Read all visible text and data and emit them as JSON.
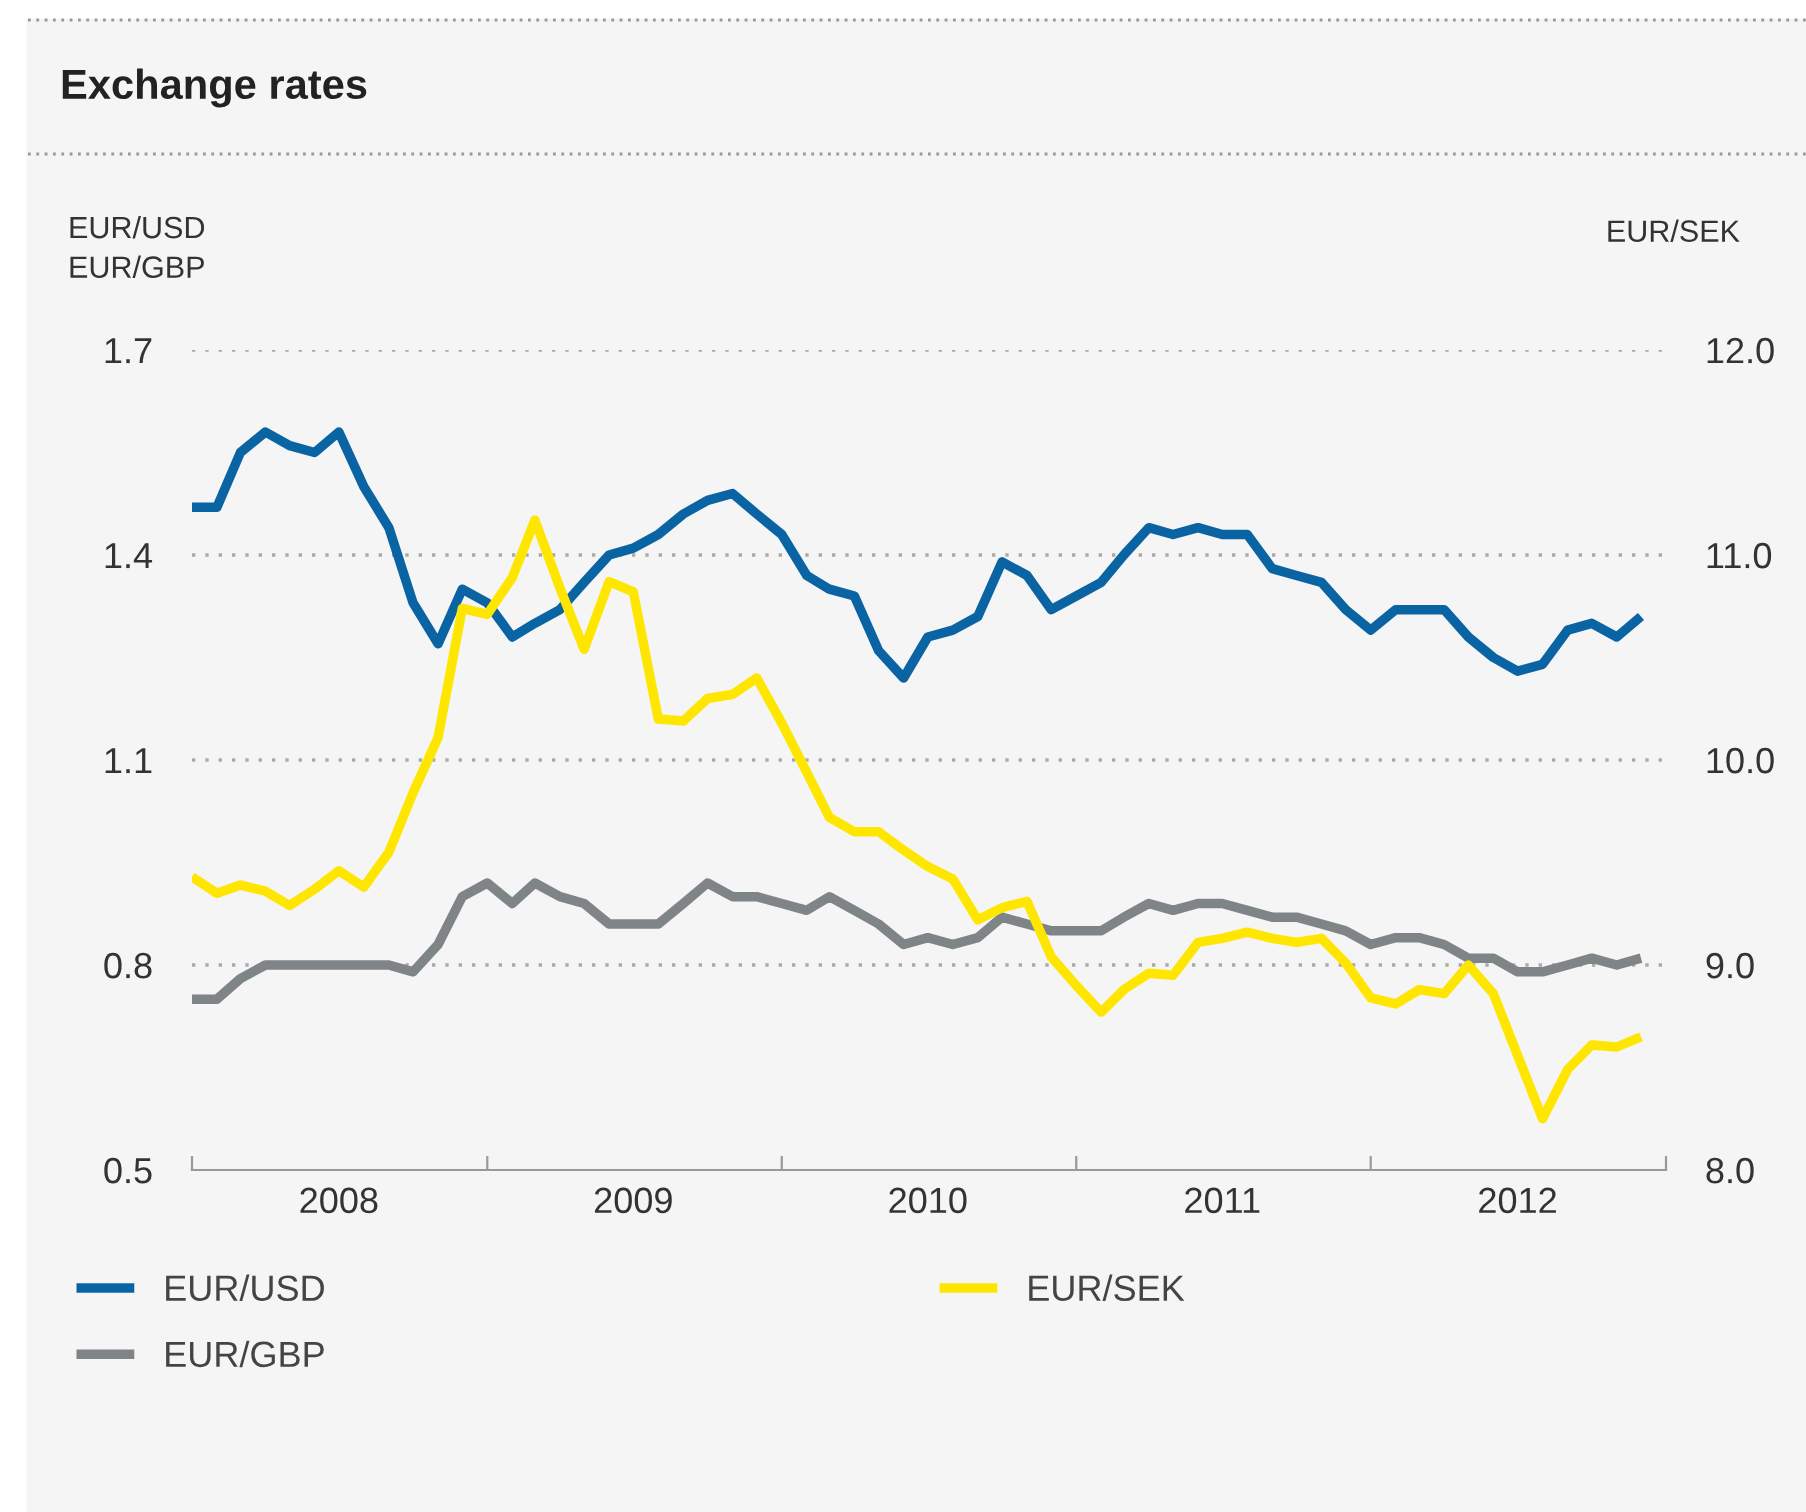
{
  "chart_data": {
    "type": "line",
    "title": "Exchange rates",
    "ylabel": "EUR/USD\nEUR/GBP",
    "y2label": "EUR/SEK",
    "x": [
      "2008-01",
      "2008-02",
      "2008-03",
      "2008-04",
      "2008-05",
      "2008-06",
      "2008-07",
      "2008-08",
      "2008-09",
      "2008-10",
      "2008-11",
      "2008-12",
      "2009-01",
      "2009-02",
      "2009-03",
      "2009-04",
      "2009-05",
      "2009-06",
      "2009-07",
      "2009-08",
      "2009-09",
      "2009-10",
      "2009-11",
      "2009-12",
      "2010-01",
      "2010-02",
      "2010-03",
      "2010-04",
      "2010-05",
      "2010-06",
      "2010-07",
      "2010-08",
      "2010-09",
      "2010-10",
      "2010-11",
      "2010-12",
      "2011-01",
      "2011-02",
      "2011-03",
      "2011-04",
      "2011-05",
      "2011-06",
      "2011-07",
      "2011-08",
      "2011-09",
      "2011-10",
      "2011-11",
      "2011-12",
      "2012-01",
      "2012-02",
      "2012-03",
      "2012-04",
      "2012-05",
      "2012-06",
      "2012-07",
      "2012-08",
      "2012-09",
      "2012-10",
      "2012-11",
      "2012-12"
    ],
    "series": [
      {
        "name": "EUR/USD",
        "color": "#0a64a4",
        "values": [
          1.47,
          1.47,
          1.55,
          1.58,
          1.56,
          1.55,
          1.58,
          1.5,
          1.44,
          1.33,
          1.27,
          1.35,
          1.33,
          1.28,
          1.3,
          1.32,
          1.36,
          1.4,
          1.41,
          1.43,
          1.46,
          1.48,
          1.49,
          1.46,
          1.43,
          1.37,
          1.35,
          1.34,
          1.26,
          1.22,
          1.28,
          1.29,
          1.31,
          1.39,
          1.37,
          1.32,
          1.34,
          1.36,
          1.4,
          1.44,
          1.43,
          1.44,
          1.43,
          1.43,
          1.38,
          1.37,
          1.36,
          1.32,
          1.29,
          1.32,
          1.32,
          1.32,
          1.28,
          1.25,
          1.23,
          1.24,
          1.29,
          1.3,
          1.28,
          1.31
        ]
      },
      {
        "name": "EUR/SEK",
        "color": "#ffe600",
        "axis": "y2",
        "values": [
          9.43,
          9.35,
          9.39,
          9.36,
          9.29,
          9.37,
          9.46,
          9.38,
          9.55,
          9.84,
          10.11,
          10.74,
          10.71,
          10.89,
          11.17,
          10.84,
          10.54,
          10.87,
          10.82,
          10.2,
          10.19,
          10.3,
          10.32,
          10.4,
          10.18,
          9.94,
          9.72,
          9.65,
          9.65,
          9.56,
          9.48,
          9.42,
          9.22,
          9.28,
          9.31,
          9.04,
          8.9,
          8.77,
          8.88,
          8.96,
          8.95,
          9.11,
          9.13,
          9.16,
          9.13,
          9.11,
          9.13,
          9.01,
          8.84,
          8.81,
          8.88,
          8.86,
          9.0,
          8.86,
          8.56,
          8.25,
          8.49,
          8.61,
          8.6,
          8.65
        ]
      },
      {
        "name": "EUR/GBP",
        "color": "#7f8487",
        "values": [
          0.75,
          0.75,
          0.78,
          0.8,
          0.8,
          0.8,
          0.8,
          0.8,
          0.8,
          0.79,
          0.83,
          0.9,
          0.92,
          0.89,
          0.92,
          0.9,
          0.89,
          0.86,
          0.86,
          0.86,
          0.89,
          0.92,
          0.9,
          0.9,
          0.89,
          0.88,
          0.9,
          0.88,
          0.86,
          0.83,
          0.84,
          0.83,
          0.84,
          0.87,
          0.86,
          0.85,
          0.85,
          0.85,
          0.87,
          0.89,
          0.88,
          0.89,
          0.89,
          0.88,
          0.87,
          0.87,
          0.86,
          0.85,
          0.83,
          0.84,
          0.84,
          0.83,
          0.81,
          0.81,
          0.79,
          0.79,
          0.8,
          0.81,
          0.8,
          0.81
        ]
      }
    ],
    "xlim": [
      "2008-01-01",
      "2013-01-01"
    ],
    "xticks": [
      {
        "value": "2008-01-01",
        "label": null
      },
      {
        "value": "2008-07-01",
        "label": "2008"
      },
      {
        "value": "2009-01-01",
        "label": null
      },
      {
        "value": "2009-07-01",
        "label": "2009"
      },
      {
        "value": "2010-01-01",
        "label": null
      },
      {
        "value": "2010-07-01",
        "label": "2010"
      },
      {
        "value": "2011-01-01",
        "label": null
      },
      {
        "value": "2011-07-01",
        "label": "2011"
      },
      {
        "value": "2012-01-01",
        "label": null
      },
      {
        "value": "2012-07-01",
        "label": "2012"
      },
      {
        "value": "2013-01-01",
        "label": null
      }
    ],
    "ylim": [
      0.5,
      1.7
    ],
    "yticks": [
      0.5,
      0.8,
      1.1,
      1.4,
      1.7
    ],
    "y2lim": [
      8,
      12
    ],
    "y2ticks": [
      {
        "value": 8,
        "label": "8.0"
      },
      {
        "value": 9,
        "label": "9.0"
      },
      {
        "value": 10,
        "label": "10.0"
      },
      {
        "value": 11,
        "label": "11.0"
      },
      {
        "value": 12,
        "label": "12.0"
      }
    ],
    "grid": "y",
    "legend": "bottom",
    "line_style": "solid",
    "marker": "none"
  }
}
